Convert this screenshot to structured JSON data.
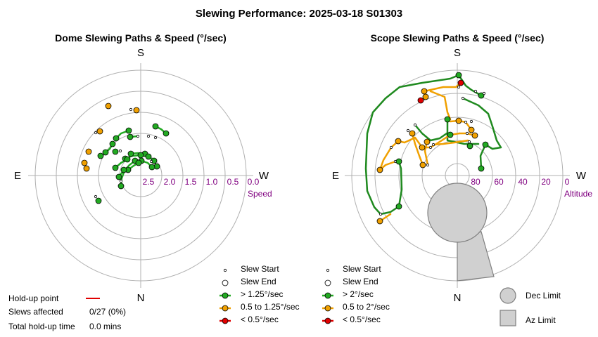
{
  "title": "Slewing Performance: 2025-03-18 S01303",
  "colors": {
    "green": "#22aa22",
    "orange": "#f0a000",
    "red": "#e00000",
    "darkgreen": "#2a8a2a",
    "purple": "#800080",
    "grid": "#b0b0b0"
  },
  "dome": {
    "title": "Dome Slewing Paths & Speed (°/sec)",
    "compass": {
      "s": "S",
      "n": "N",
      "e": "E",
      "w": "W"
    },
    "radial_label": "Speed",
    "ticks": [
      "2.5",
      "2.0",
      "1.5",
      "1.0",
      "0.5",
      "0.0"
    ],
    "legend": [
      "Slew Start",
      "Slew End",
      "> 1.25°/sec",
      "0.5 to 1.25°/sec",
      "< 0.5°/sec"
    ]
  },
  "scope": {
    "title": "Scope Slewing Paths & Speed (°/sec)",
    "compass": {
      "s": "S",
      "n": "N",
      "e": "E",
      "w": "W"
    },
    "radial_label": "Altitude",
    "ticks": [
      "80",
      "60",
      "40",
      "20",
      "0"
    ],
    "legend": [
      "Slew Start",
      "Slew End",
      "> 2°/sec",
      "0.5 to 2°/sec",
      "< 0.5°/sec"
    ]
  },
  "limits": {
    "dec": "Dec Limit",
    "az": "Az Limit"
  },
  "holdup": {
    "point_label": "Hold-up point",
    "slews_label": "Slews affected",
    "slews_value": "0/27 (0%)",
    "time_label": "Total hold-up time",
    "time_value": "0.0 mins"
  },
  "chart_data": [
    {
      "type": "polar",
      "title": "Dome Slewing Paths & Speed (°/sec)",
      "radial_label": "Speed",
      "radial_ticks": [
        2.5,
        2.0,
        1.5,
        1.0,
        0.5,
        0.0
      ],
      "radial_range": [
        0.0,
        3.5
      ],
      "radial_direction": "decreasing outward",
      "azimuth_labels": {
        "top": "S",
        "bottom": "N",
        "left": "E",
        "right": "W"
      },
      "series": [
        {
          "name": "> 1.25°/sec",
          "color": "#22aa22",
          "count_points": 30
        },
        {
          "name": "0.5 to 1.25°/sec",
          "color": "#f0a000",
          "count_points": 7
        },
        {
          "name": "< 0.5°/sec",
          "color": "#e00000",
          "count_points": 0
        }
      ]
    },
    {
      "type": "polar",
      "title": "Scope Slewing Paths & Speed (°/sec)",
      "radial_label": "Altitude",
      "radial_ticks": [
        80,
        60,
        40,
        20,
        0
      ],
      "radial_range": [
        90,
        0
      ],
      "azimuth_labels": {
        "top": "S",
        "bottom": "N",
        "left": "E",
        "right": "W"
      },
      "series": [
        {
          "name": "> 2°/sec",
          "color": "#22aa22"
        },
        {
          "name": "0.5 to 2°/sec",
          "color": "#f0a000"
        },
        {
          "name": "< 0.5°/sec",
          "color": "#e00000"
        }
      ],
      "limits": [
        "Dec Limit",
        "Az Limit"
      ]
    }
  ]
}
